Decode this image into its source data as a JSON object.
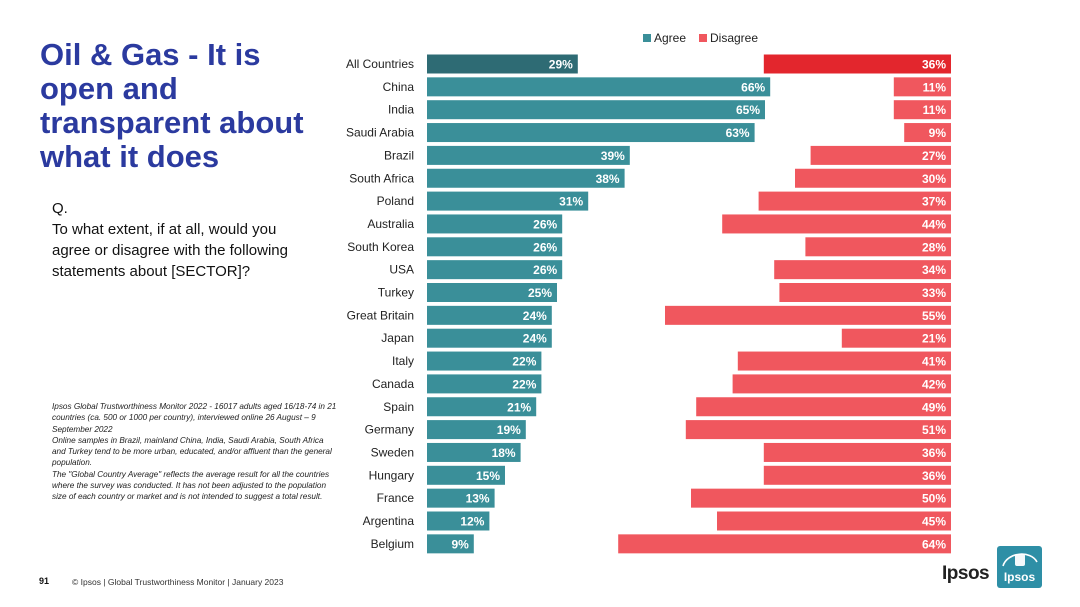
{
  "title": "Oil & Gas - It is open and transparent about what it does",
  "question": {
    "label": "Q.",
    "text": "To what extent, if at all, would you agree or disagree with the following statements about [SECTOR]?"
  },
  "footnote": {
    "line1": "Ipsos Global Trustworthiness Monitor 2022 - 16017 adults aged 16/18-74 in 21 countries (ca. 500 or 1000 per country), interviewed online 26 August – 9 September 2022",
    "line2": "Online samples in Brazil, mainland China, India, Saudi Arabia, South Africa and Turkey tend to be more urban, educated, and/or affluent than the general population.",
    "line3": "The \"Global Country Average\" reflects the average result for all the countries where the survey was conducted. It has not been adjusted to the population size of each country or market and is not intended to suggest a total result."
  },
  "footer": {
    "page_number": "91",
    "text": "© Ipsos | Global Trustworthiness Monitor | January 2023",
    "brand": "Ipsos",
    "logo_text": "Ipsos"
  },
  "colors": {
    "agree": "#3a8f99",
    "agree_total": "#2e6b74",
    "disagree": "#f0575e",
    "disagree_total": "#e3262d",
    "title": "#2b3a9f",
    "logo": "#2e8fa6"
  },
  "chart_data": {
    "type": "bar",
    "orientation": "horizontal",
    "legend": [
      "Agree",
      "Disagree"
    ],
    "legend_position": "top",
    "unit": "%",
    "categories": [
      "All Countries",
      "China",
      "India",
      "Saudi Arabia",
      "Brazil",
      "South Africa",
      "Poland",
      "Australia",
      "South Korea",
      "USA",
      "Turkey",
      "Great Britain",
      "Japan",
      "Italy",
      "Canada",
      "Spain",
      "Germany",
      "Sweden",
      "Hungary",
      "France",
      "Argentina",
      "Belgium"
    ],
    "series": [
      {
        "name": "Agree",
        "values": [
          29,
          66,
          65,
          63,
          39,
          38,
          31,
          26,
          26,
          26,
          25,
          24,
          24,
          22,
          22,
          21,
          19,
          18,
          15,
          13,
          12,
          9
        ]
      },
      {
        "name": "Disagree",
        "values": [
          36,
          11,
          11,
          9,
          27,
          30,
          37,
          44,
          28,
          34,
          33,
          55,
          21,
          41,
          42,
          49,
          51,
          36,
          36,
          50,
          45,
          64
        ]
      }
    ]
  }
}
